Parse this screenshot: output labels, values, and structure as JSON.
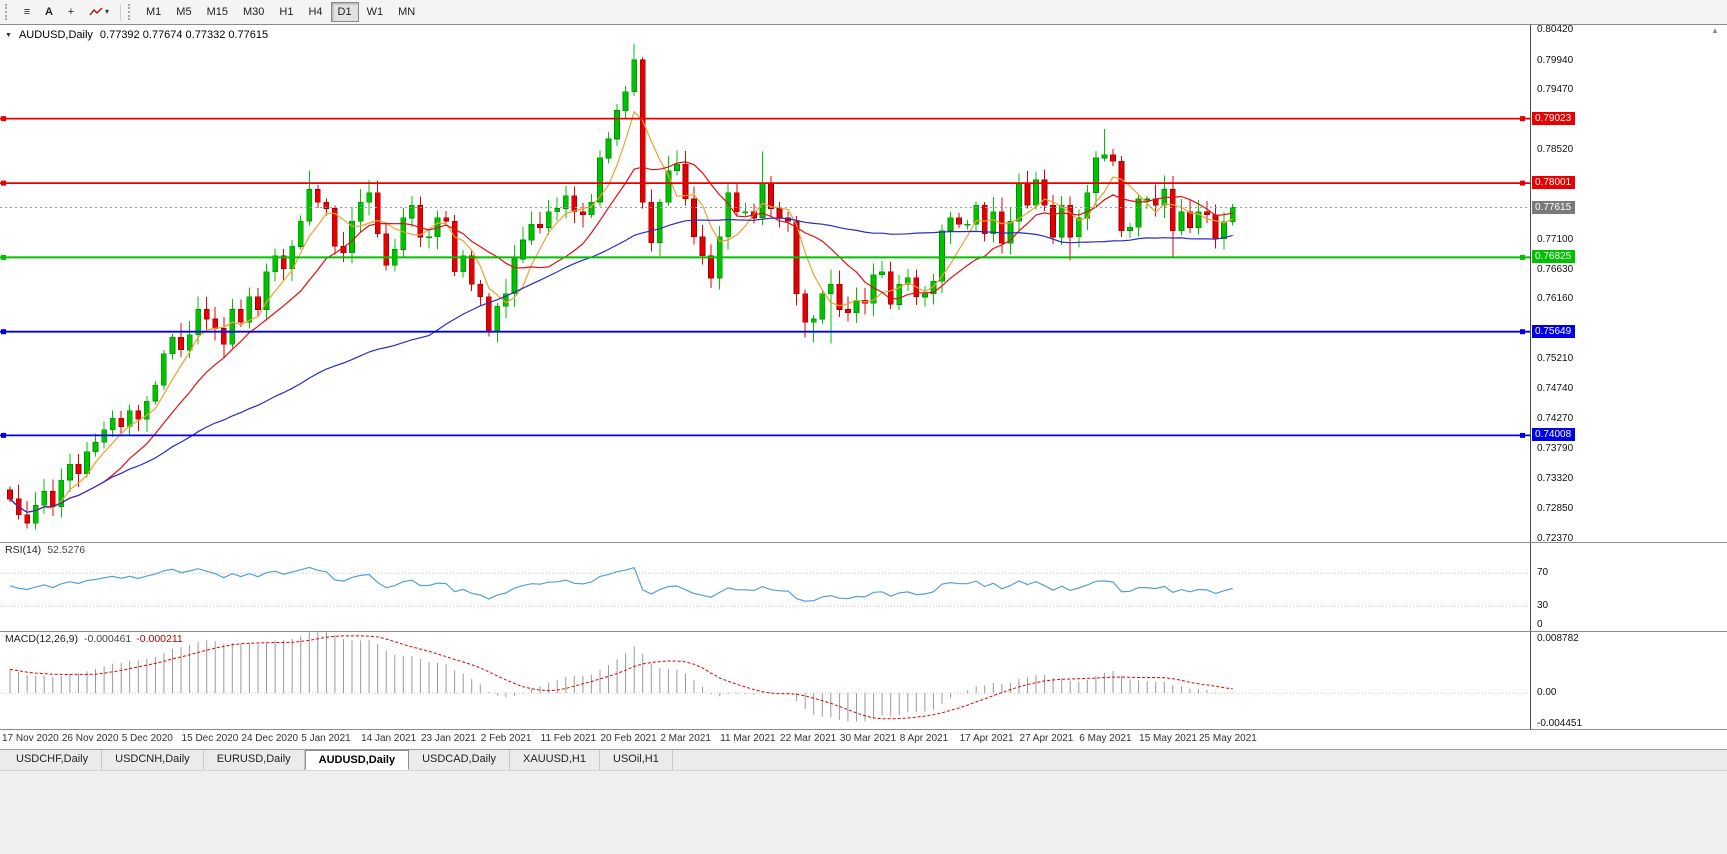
{
  "toolbar": {
    "tools": [
      {
        "name": "charts-list",
        "glyph": "≡"
      },
      {
        "name": "text-tool",
        "glyph": "A"
      },
      {
        "name": "crosshair",
        "glyph": "+"
      }
    ],
    "caret": "▾",
    "timeframes": [
      "M1",
      "M5",
      "M15",
      "M30",
      "H1",
      "H4",
      "D1",
      "W1",
      "MN"
    ],
    "active_timeframe": "D1"
  },
  "icons": {
    "chart_menu": "▼",
    "scroll_up": "▲"
  },
  "chart_data": {
    "type": "candlestick",
    "symbol": "AUDUSD",
    "timeframe": "Daily",
    "title": "AUDUSD,Daily",
    "ohlc_text": "0.77392 0.77674 0.77332 0.77615",
    "current_candle": {
      "open": 0.77392,
      "high": 0.77674,
      "low": 0.77332,
      "close": 0.77615
    },
    "first_open": 0.7315,
    "closes": [
      0.73,
      0.7275,
      0.7262,
      0.729,
      0.7312,
      0.7288,
      0.733,
      0.7355,
      0.734,
      0.7375,
      0.739,
      0.741,
      0.7428,
      0.7415,
      0.744,
      0.7426,
      0.7455,
      0.748,
      0.753,
      0.7556,
      0.7536,
      0.756,
      0.76,
      0.7585,
      0.757,
      0.7545,
      0.76,
      0.758,
      0.762,
      0.76,
      0.766,
      0.7685,
      0.7665,
      0.77,
      0.774,
      0.779,
      0.777,
      0.776,
      0.77,
      0.769,
      0.774,
      0.777,
      0.7785,
      0.772,
      0.767,
      0.7695,
      0.7745,
      0.7765,
      0.7715,
      0.7715,
      0.7745,
      0.774,
      0.766,
      0.7685,
      0.764,
      0.762,
      0.7565,
      0.7605,
      0.7625,
      0.768,
      0.771,
      0.7735,
      0.773,
      0.7755,
      0.776,
      0.778,
      0.7755,
      0.775,
      0.777,
      0.784,
      0.787,
      0.7915,
      0.7945,
      0.7995,
      0.777,
      0.7706,
      0.777,
      0.782,
      0.783,
      0.7775,
      0.7715,
      0.7685,
      0.765,
      0.7715,
      0.7785,
      0.7755,
      0.7755,
      0.7745,
      0.78,
      0.776,
      0.7745,
      0.774,
      0.7625,
      0.758,
      0.7585,
      0.7625,
      0.764,
      0.76,
      0.7595,
      0.7615,
      0.761,
      0.7655,
      0.766,
      0.7608,
      0.764,
      0.765,
      0.762,
      0.7625,
      0.7645,
      0.7725,
      0.7745,
      0.7735,
      0.7735,
      0.7765,
      0.772,
      0.7755,
      0.7705,
      0.774,
      0.78,
      0.7765,
      0.7805,
      0.7765,
      0.7715,
      0.7765,
      0.7715,
      0.7745,
      0.7785,
      0.784,
      0.7845,
      0.7835,
      0.7725,
      0.773,
      0.7775,
      0.7775,
      0.7765,
      0.779,
      0.7725,
      0.7755,
      0.773,
      0.7755,
      0.775,
      0.7712,
      0.7739,
      0.77615
    ],
    "wick_overrides": {
      "3": {
        "l": 0.7252
      },
      "35": {
        "h": 0.782
      },
      "56": {
        "l": 0.7557
      },
      "73": {
        "h": 0.802,
        "l": 0.7938
      },
      "74": {
        "h": 0.7999,
        "l": 0.776
      },
      "75": {
        "h": 0.779,
        "l": 0.7692
      },
      "88": {
        "h": 0.785
      },
      "93": {
        "l": 0.7556
      },
      "94": {
        "l": 0.7548
      },
      "96": {
        "l": 0.7546
      },
      "118": {
        "h": 0.7815
      },
      "120": {
        "h": 0.7818
      },
      "124": {
        "l": 0.7678
      },
      "128": {
        "h": 0.7886
      },
      "136": {
        "l": 0.7684
      },
      "143": {
        "o": 0.77392,
        "h": 0.77674,
        "l": 0.77332,
        "c": 0.77615
      }
    },
    "price_axis": {
      "min": 0.7232,
      "max": 0.8052,
      "ticks": [
        "0.80420",
        "0.79940",
        "0.79470",
        "0.78520",
        "0.77100",
        "0.76630",
        "0.76160",
        "0.75210",
        "0.74740",
        "0.74270",
        "0.73790",
        "0.73320",
        "0.72850",
        "0.72370"
      ]
    },
    "horizontal_lines": [
      {
        "value": 0.79023,
        "label": "0.79023",
        "color": "#e80000",
        "thickness": 1.8
      },
      {
        "value": 0.78001,
        "label": "0.78001",
        "color": "#e80000",
        "thickness": 1.8
      },
      {
        "value": 0.76825,
        "label": "0.76825",
        "color": "#00c000",
        "thickness": 2
      },
      {
        "value": 0.75649,
        "label": "0.75649",
        "color": "#0000e8",
        "thickness": 1.8
      },
      {
        "value": 0.74008,
        "label": "0.74008",
        "color": "#0000e8",
        "thickness": 1.8
      }
    ],
    "current_price": {
      "label": "0.77615",
      "value": 0.77615,
      "color": "#7a7a7a"
    },
    "moving_averages": [
      {
        "name": "ma-fast",
        "period": 5,
        "color": "#f0a030"
      },
      {
        "name": "ma-mid",
        "period": 12,
        "color": "#e01010"
      },
      {
        "name": "ma-slow",
        "period": 50,
        "color": "#2a2ac8"
      }
    ],
    "x_labels": [
      "17 Nov 2020",
      "26 Nov 2020",
      "5 Dec 2020",
      "15 Dec 2020",
      "24 Dec 2020",
      "5 Jan 2021",
      "14 Jan 2021",
      "23 Jan 2021",
      "2 Feb 2021",
      "11 Feb 2021",
      "20 Feb 2021",
      "2 Mar 2021",
      "11 Mar 2021",
      "22 Mar 2021",
      "30 Mar 2021",
      "8 Apr 2021",
      "17 Apr 2021",
      "27 Apr 2021",
      "6 May 2021",
      "15 May 2021",
      "25 May 2021"
    ],
    "candles_per_label": 7,
    "colors": {
      "up": "#00c300",
      "up_edge": "#008f00",
      "down": "#e60000",
      "down_edge": "#990000"
    }
  },
  "rsi": {
    "label": "RSI(14)",
    "value": "52.5276",
    "period": 14,
    "levels": [
      70,
      30,
      0
    ],
    "color": "#569fd6",
    "range": [
      0,
      108
    ]
  },
  "macd": {
    "label": "MACD(12,26,9)",
    "value_main": "-0.000461",
    "value_signal": "-0.000211",
    "fast": 12,
    "slow": 26,
    "signal": 9,
    "axis_labels": [
      "0.008782",
      "0.00",
      "-0.004451"
    ],
    "axis_values": [
      0.008782,
      0,
      -0.004451
    ],
    "range": [
      -0.0052,
      0.009
    ],
    "hist_color": "#9a9a9a",
    "signal_color": "#e00000"
  },
  "tabs": {
    "items": [
      "USDCHF,Daily",
      "USDCNH,Daily",
      "EURUSD,Daily",
      "AUDUSD,Daily",
      "USDCAD,Daily",
      "XAUUSD,H1",
      "USOil,H1"
    ],
    "active": "AUDUSD,Daily"
  }
}
